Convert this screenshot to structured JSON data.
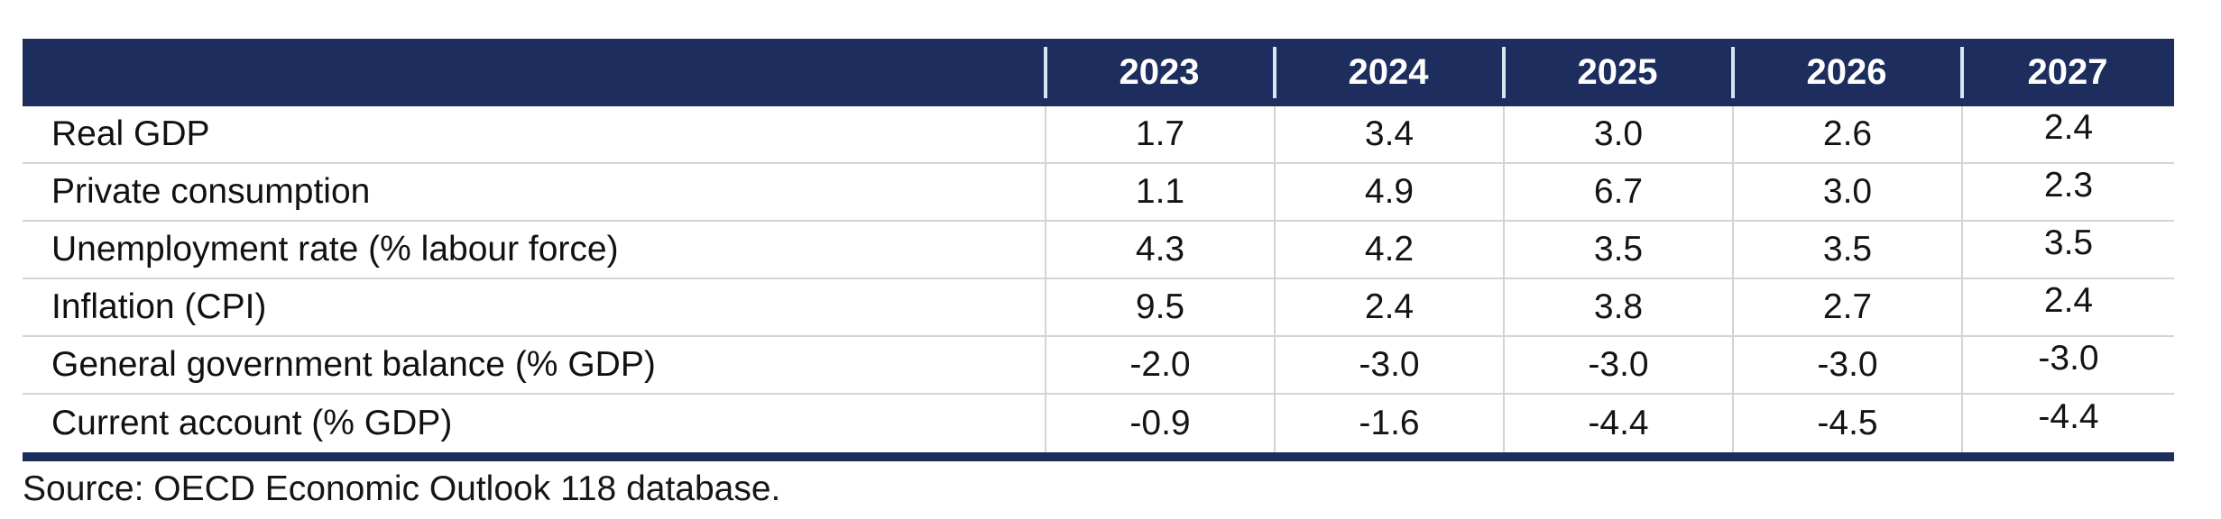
{
  "table": {
    "columns": [
      "2023",
      "2024",
      "2025",
      "2026",
      "2027"
    ],
    "rows": [
      {
        "label": "Real GDP",
        "values": [
          "1.7",
          "3.4",
          "3.0",
          "2.6",
          "2.4"
        ]
      },
      {
        "label": "Private consumption",
        "values": [
          "1.1",
          "4.9",
          "6.7",
          "3.0",
          "2.3"
        ]
      },
      {
        "label": "Unemployment rate (% labour force)",
        "values": [
          "4.3",
          "4.2",
          "3.5",
          "3.5",
          "3.5"
        ]
      },
      {
        "label": "Inflation (CPI)",
        "values": [
          "9.5",
          "2.4",
          "3.8",
          "2.7",
          "2.4"
        ]
      },
      {
        "label": "General government balance (% GDP)",
        "values": [
          "-2.0",
          "-3.0",
          "-3.0",
          "-3.0",
          "-3.0"
        ]
      },
      {
        "label": "Current account (% GDP)",
        "values": [
          "-0.9",
          "-1.6",
          "-4.4",
          "-4.5",
          "-4.4"
        ]
      }
    ]
  },
  "source": {
    "text": "Source: OECD Economic Outlook 118 database."
  },
  "colors": {
    "header_bg": "#1c2d5e",
    "header_text": "#ffffff",
    "header_column_separator": "#d9e4f2",
    "row_divider": "#d4d4d4",
    "bottom_rule": "#1c2d5e",
    "body_text": "#111111"
  }
}
